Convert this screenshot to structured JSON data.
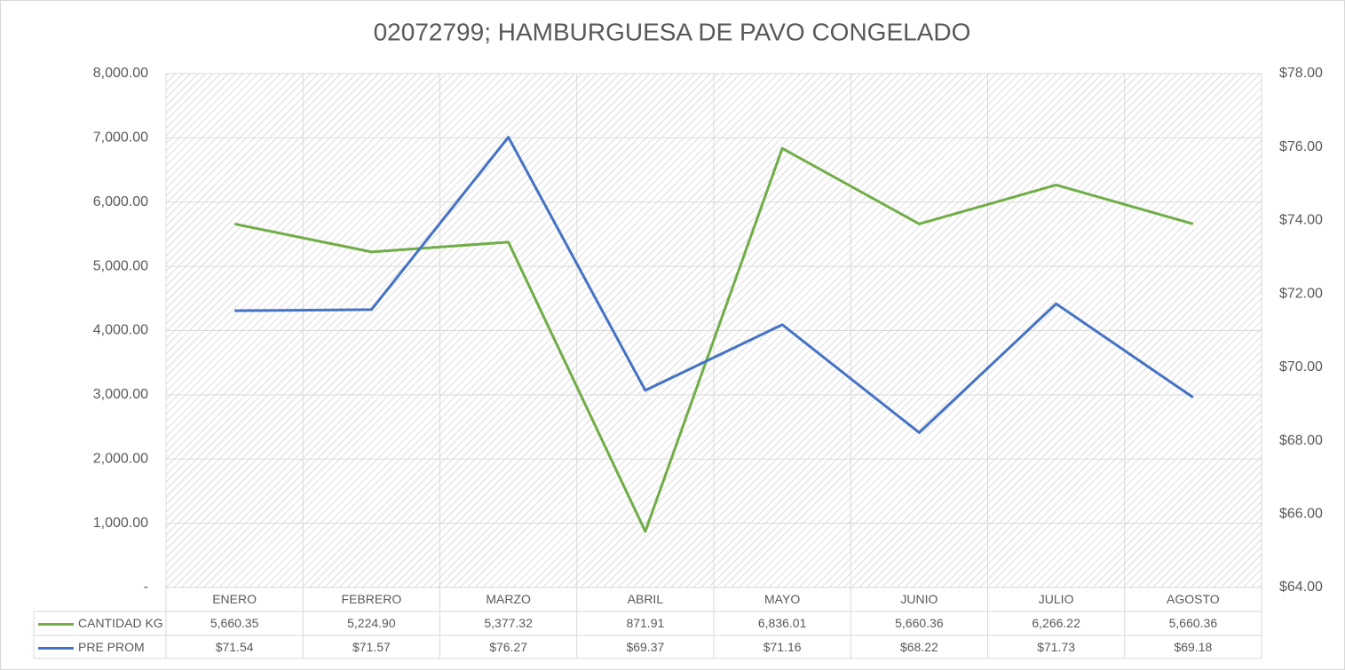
{
  "chart_data": {
    "type": "line",
    "title": "02072799; HAMBURGUESA DE PAVO CONGELADO",
    "categories": [
      "ENERO",
      "FEBRERO",
      "MARZO",
      "ABRIL",
      "MAYO",
      "JUNIO",
      "JULIO",
      "AGOSTO"
    ],
    "series": [
      {
        "name": "CANTIDAD KG",
        "color": "#70ad47",
        "values": [
          5660.35,
          5224.9,
          5377.32,
          871.91,
          6836.01,
          5660.36,
          6266.22,
          5660.36
        ],
        "value_labels": [
          "5,660.35",
          "5,224.90",
          "5,377.32",
          "871.91",
          "6,836.01",
          "5,660.36",
          "6,266.22",
          "5,660.36"
        ]
      },
      {
        "name": "PRE PROM",
        "color": "#4472c4",
        "axis": "y2",
        "values": [
          71.54,
          71.57,
          76.27,
          69.37,
          71.16,
          68.22,
          71.73,
          69.18
        ],
        "value_labels": [
          "$71.54",
          "$71.57",
          "$76.27",
          "$69.37",
          "$71.16",
          "$68.22",
          "$71.73",
          "$69.18"
        ]
      }
    ],
    "ylim": [
      0,
      8000
    ],
    "yticks": [
      {
        "value": 0,
        "label": "-"
      },
      {
        "value": 1000,
        "label": "1,000.00"
      },
      {
        "value": 2000,
        "label": "2,000.00"
      },
      {
        "value": 3000,
        "label": "3,000.00"
      },
      {
        "value": 4000,
        "label": "4,000.00"
      },
      {
        "value": 5000,
        "label": "5,000.00"
      },
      {
        "value": 6000,
        "label": "6,000.00"
      },
      {
        "value": 7000,
        "label": "7,000.00"
      },
      {
        "value": 8000,
        "label": "8,000.00"
      }
    ],
    "y2lim": [
      64,
      78
    ],
    "y2ticks": [
      {
        "value": 64,
        "label": "$64.00"
      },
      {
        "value": 66,
        "label": "$66.00"
      },
      {
        "value": 68,
        "label": "$68.00"
      },
      {
        "value": 70,
        "label": "$70.00"
      },
      {
        "value": 72,
        "label": "$72.00"
      },
      {
        "value": 74,
        "label": "$74.00"
      },
      {
        "value": 76,
        "label": "$76.00"
      },
      {
        "value": 78,
        "label": "$78.00"
      }
    ],
    "grid": true
  }
}
